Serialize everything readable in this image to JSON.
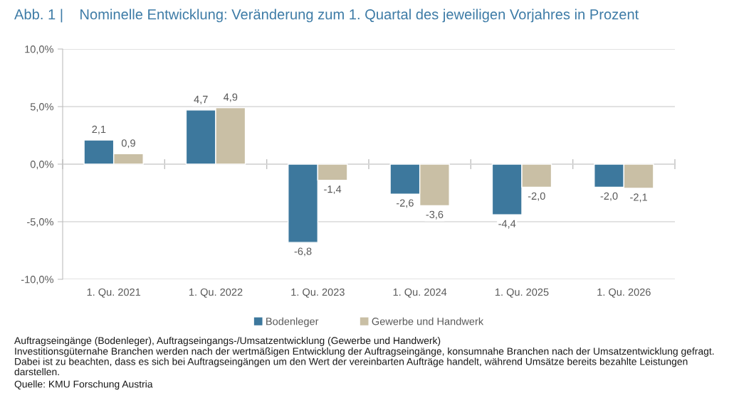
{
  "chart_data": {
    "type": "bar",
    "title": "Abb. 1 |    Nominelle Entwicklung: Veränderung zum 1. Quartal des jeweiligen Vorjahres in Prozent",
    "categories": [
      "1. Qu. 2021",
      "1. Qu. 2022",
      "1. Qu. 2023",
      "1. Qu. 2024",
      "1. Qu. 2025",
      "1. Qu. 2026"
    ],
    "series": [
      {
        "name": "Bodenleger",
        "color": "#3d789d",
        "values": [
          2.1,
          4.7,
          -6.8,
          -2.6,
          -4.4,
          -2.0
        ],
        "value_labels": [
          "2,1",
          "4,7",
          "-6,8",
          "-2,6",
          "-4,4",
          "-2,0"
        ]
      },
      {
        "name": "Gewerbe und Handwerk",
        "color": "#c9bfa5",
        "values": [
          0.9,
          4.9,
          -1.4,
          -3.6,
          -2.0,
          -2.1
        ],
        "value_labels": [
          "0,9",
          "4,9",
          "-1,4",
          "-3,6",
          "-2,0",
          "-2,1"
        ]
      }
    ],
    "ylim": [
      -10,
      10
    ],
    "yticks": [
      {
        "value": -10,
        "label": "-10,0%"
      },
      {
        "value": -5,
        "label": "-5,0%"
      },
      {
        "value": 0,
        "label": "0,0%"
      },
      {
        "value": 5,
        "label": "5,0%"
      },
      {
        "value": 10,
        "label": "10,0%"
      }
    ],
    "grid": "y",
    "legend": "bottom",
    "annotations": [
      "Auftragseingänge (Bodenleger), Auftragseingangs-/Umsatzentwicklung (Gewerbe und Handwerk)",
      "Investitionsgüternahe Branchen werden nach der wertmäßigen Entwicklung der Auftragseingänge, konsumnahe Branchen nach der Umsatzentwicklung gefragt. Dabei ist zu beachten, dass es sich bei Auftragseingängen um den Wert der vereinbarten Aufträge handelt, während Umsätze bereits bezahlte Leistungen darstellen.",
      "Quelle: KMU Forschung Austria"
    ]
  }
}
